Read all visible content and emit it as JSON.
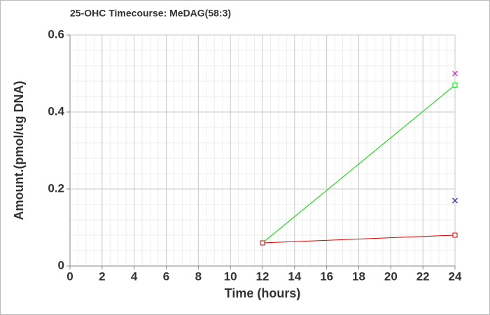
{
  "chart_data": {
    "type": "line",
    "title": "25-OHC Timecourse: MeDAG(58:3)",
    "x_label": "Time (hours)",
    "y_label": "Amount.(pmol/ug DNA)",
    "xlim": [
      0,
      24
    ],
    "xticks": [
      0,
      2,
      4,
      6,
      8,
      10,
      12,
      14,
      16,
      18,
      20,
      22,
      24
    ],
    "ylim": [
      0,
      0.6
    ],
    "yticks": [
      0,
      0.2,
      0.4,
      0.6
    ],
    "grid": true,
    "minor_grid": true,
    "series": [
      {
        "color": "#00dd00",
        "marker": "square",
        "x": [
          12,
          24
        ],
        "values": [
          0.06,
          0.47
        ]
      },
      {
        "color": "#dd0000",
        "marker": "square",
        "x": [
          12,
          24
        ],
        "values": [
          0.06,
          0.08
        ]
      },
      {
        "color": "#cc00cc",
        "marker": "x",
        "x": [
          24
        ],
        "values": [
          0.5
        ]
      },
      {
        "color": "#0000cc",
        "marker": "x",
        "x": [
          24
        ],
        "values": [
          0.17
        ]
      }
    ]
  }
}
